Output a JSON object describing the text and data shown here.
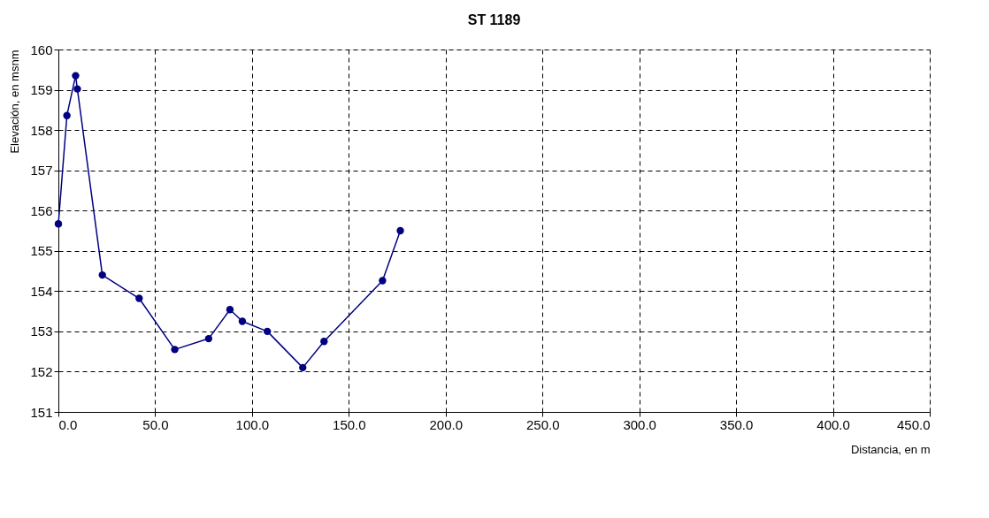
{
  "chart_data": {
    "type": "line",
    "title": "ST 1189",
    "xlabel": "Distancia, en m",
    "ylabel": "Elevación, en msnm",
    "x": [
      0,
      4.4,
      8.9,
      9.8,
      22.7,
      41.7,
      60.1,
      77.6,
      88.6,
      95.0,
      107.9,
      126.2,
      137.2,
      167.4,
      176.6
    ],
    "series": [
      {
        "color": "#000080",
        "values": [
          155.67,
          158.36,
          159.35,
          159.02,
          154.4,
          153.82,
          152.55,
          152.82,
          153.54,
          153.25,
          153.0,
          152.1,
          152.75,
          154.26,
          155.5
        ]
      }
    ],
    "xlim": [
      0,
      450
    ],
    "ylim": [
      151,
      160
    ],
    "xticks": [
      {
        "value": 0,
        "label": "0.0"
      },
      {
        "value": 50,
        "label": "50.0"
      },
      {
        "value": 100,
        "label": "100.0"
      },
      {
        "value": 150,
        "label": "150.0"
      },
      {
        "value": 200,
        "label": "200.0"
      },
      {
        "value": 250,
        "label": "250.0"
      },
      {
        "value": 300,
        "label": "300.0"
      },
      {
        "value": 350,
        "label": "350.0"
      },
      {
        "value": 400,
        "label": "400.0"
      },
      {
        "value": 450,
        "label": "450.0"
      }
    ],
    "yticks": [
      151,
      152,
      153,
      154,
      155,
      156,
      157,
      158,
      159,
      160
    ],
    "grid": true,
    "marker": "circle",
    "line_style": "solid"
  }
}
